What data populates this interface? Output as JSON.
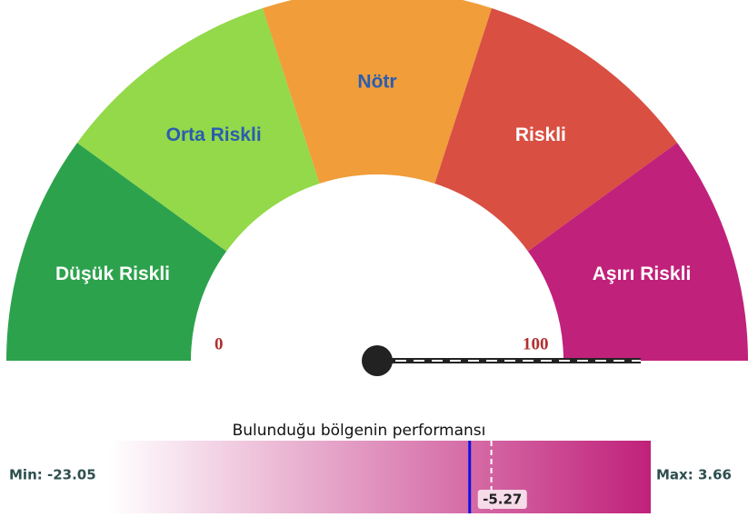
{
  "chart_data": [
    {
      "type": "gauge",
      "bands": [
        {
          "name": "Düşük Riskli",
          "color": "#2ca24c",
          "label_color": "#ffffff"
        },
        {
          "name": "Orta Riskli",
          "color": "#93d94a",
          "label_color": "#2a5db0"
        },
        {
          "name": "Nötr",
          "color": "#f09d3a",
          "label_color": "#2a5db0"
        },
        {
          "name": "Riskli",
          "color": "#d94f42",
          "label_color": "#ffffff"
        },
        {
          "name": "Aşırı Riskli",
          "color": "#c0217a",
          "label_color": "#ffffff"
        }
      ],
      "range": [
        0,
        100
      ],
      "value": 100
    },
    {
      "type": "range-bar",
      "title": "Bulunduğu bölgenin performansı",
      "min": {
        "value": -23.05,
        "label": "Min: -23.05"
      },
      "max": {
        "value": 3.66,
        "label": "Max: 3.66"
      },
      "value": -5.27,
      "reference": -4.2,
      "color": "#c0217a",
      "marker_color": "#1010e0"
    }
  ]
}
